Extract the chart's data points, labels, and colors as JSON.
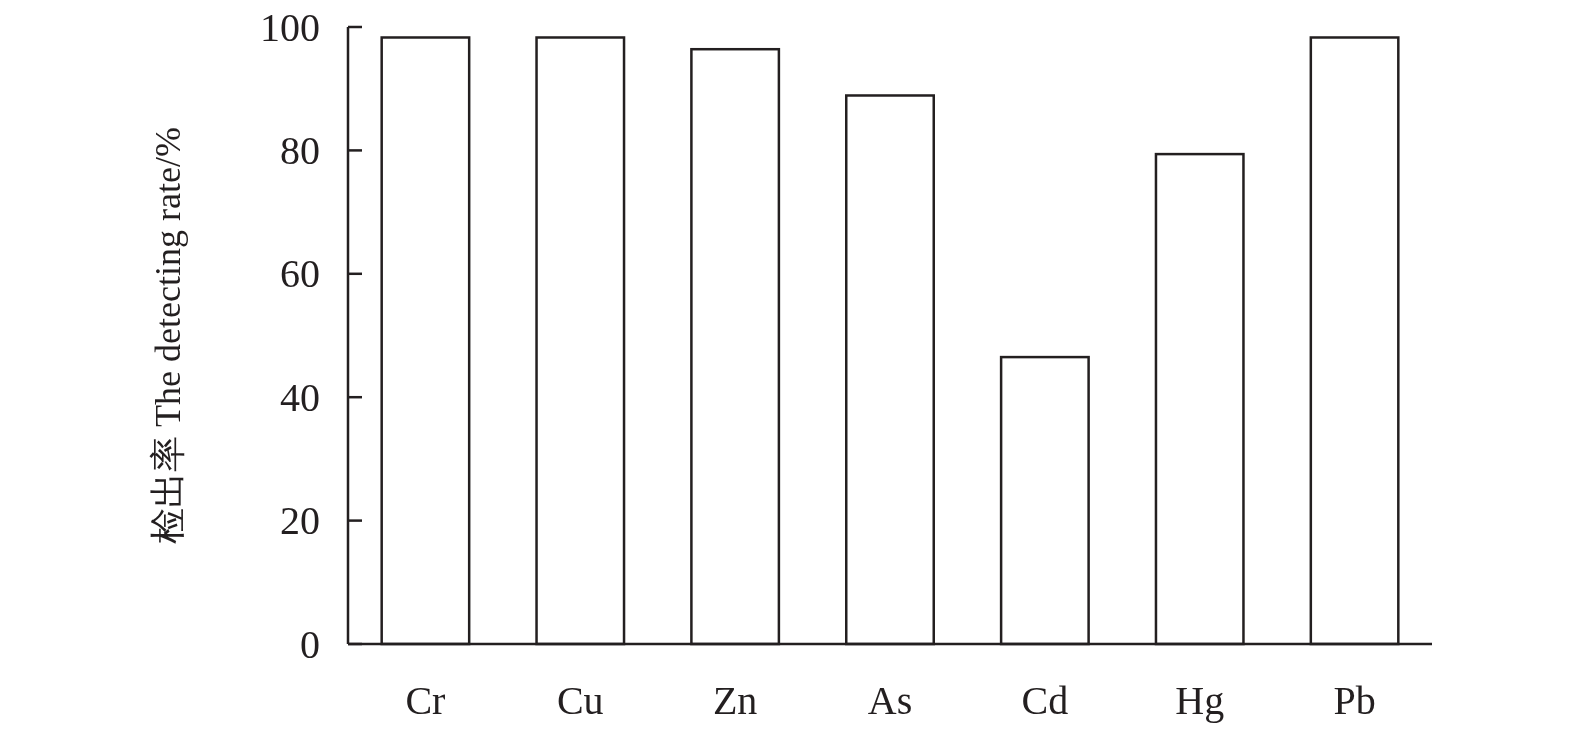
{
  "chart_data": {
    "type": "bar",
    "ylabel": "检出率 The detecting rate/%",
    "categories": [
      "Cr",
      "Cu",
      "Zn",
      "As",
      "Cd",
      "Hg",
      "Pb"
    ],
    "values": [
      98.3,
      98.3,
      96.4,
      88.9,
      46.5,
      79.4,
      98.3
    ],
    "color": "#ffffff",
    "ylim": [
      0,
      100
    ],
    "yticks": [
      0,
      20,
      40,
      60,
      80,
      100
    ]
  }
}
